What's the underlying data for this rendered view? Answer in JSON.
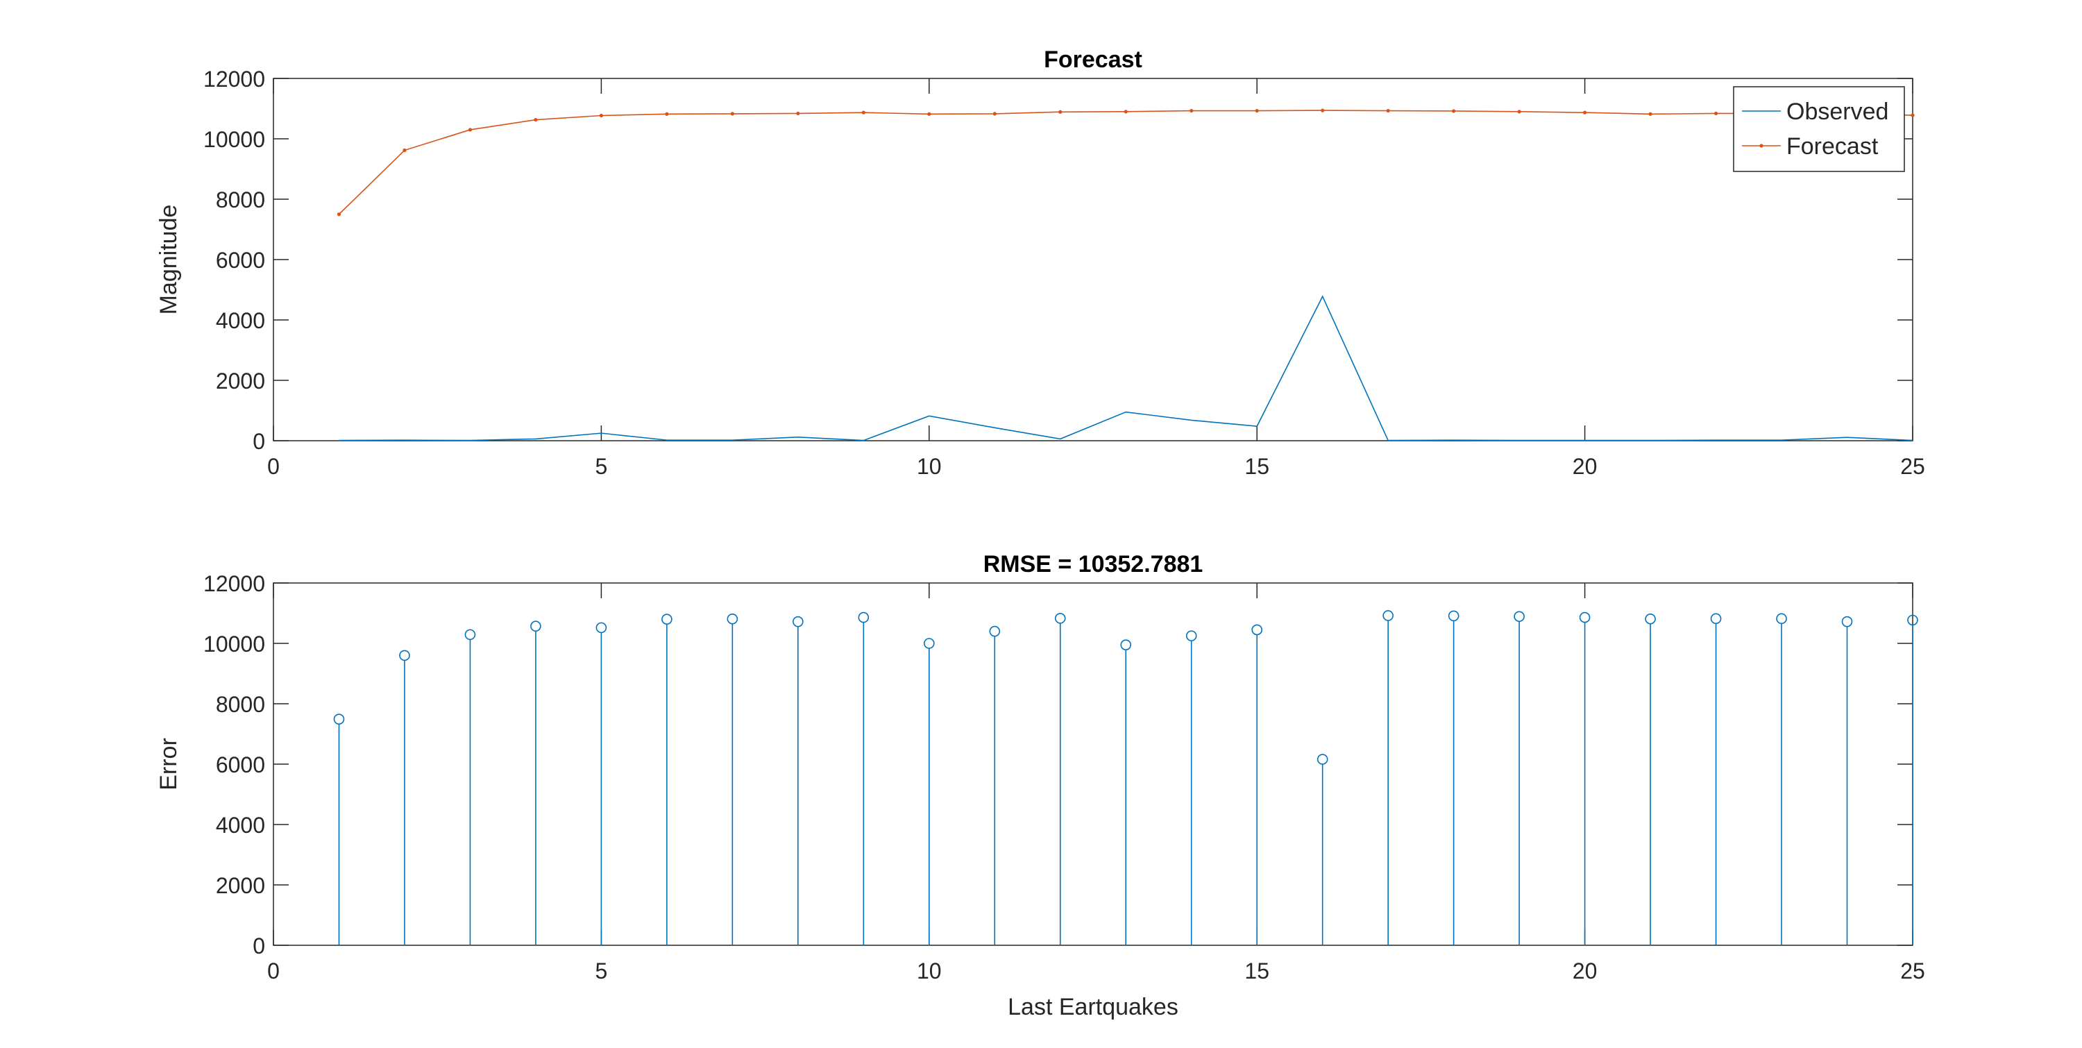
{
  "chart_data": [
    {
      "type": "line",
      "title": "Forecast",
      "xlabel": "",
      "ylabel": "Magnitude",
      "xlim": [
        0,
        25
      ],
      "ylim": [
        0,
        12000
      ],
      "xticks": [
        0,
        5,
        10,
        15,
        20,
        25
      ],
      "yticks": [
        0,
        2000,
        4000,
        6000,
        8000,
        10000,
        12000
      ],
      "legend": {
        "location": "top-right",
        "entries": [
          "Observed",
          "Forecast"
        ]
      },
      "x": [
        1,
        2,
        3,
        4,
        5,
        6,
        7,
        8,
        9,
        10,
        11,
        12,
        13,
        14,
        15,
        16,
        17,
        18,
        19,
        20,
        21,
        22,
        23,
        24,
        25
      ],
      "series": [
        {
          "name": "Observed",
          "color": "#0072BD",
          "marker": "none",
          "values": [
            10,
            20,
            10,
            60,
            250,
            20,
            20,
            120,
            10,
            820,
            430,
            60,
            950,
            680,
            480,
            4780,
            10,
            20,
            10,
            10,
            10,
            20,
            20,
            110,
            10
          ]
        },
        {
          "name": "Forecast",
          "color": "#D95319",
          "marker": "dot",
          "values": [
            7500,
            9620,
            10300,
            10630,
            10770,
            10820,
            10830,
            10840,
            10870,
            10820,
            10830,
            10890,
            10900,
            10930,
            10930,
            10940,
            10930,
            10920,
            10900,
            10870,
            10820,
            10840,
            10840,
            10830,
            10780
          ]
        }
      ]
    },
    {
      "type": "stem",
      "title": "RMSE = 10352.7881",
      "xlabel": "Last Eartquakes",
      "ylabel": "Error",
      "xlim": [
        0,
        25
      ],
      "ylim": [
        0,
        12000
      ],
      "xticks": [
        0,
        5,
        10,
        15,
        20,
        25
      ],
      "yticks": [
        0,
        2000,
        4000,
        6000,
        8000,
        10000,
        12000
      ],
      "x": [
        1,
        2,
        3,
        4,
        5,
        6,
        7,
        8,
        9,
        10,
        11,
        12,
        13,
        14,
        15,
        16,
        17,
        18,
        19,
        20,
        21,
        22,
        23,
        24,
        25
      ],
      "series": [
        {
          "color": "#0072BD",
          "marker": "circle",
          "values": [
            7490,
            9600,
            10290,
            10570,
            10520,
            10800,
            10810,
            10720,
            10860,
            10000,
            10400,
            10830,
            9950,
            10250,
            10450,
            6160,
            10920,
            10910,
            10890,
            10860,
            10810,
            10820,
            10820,
            10720,
            10770
          ]
        }
      ]
    }
  ]
}
